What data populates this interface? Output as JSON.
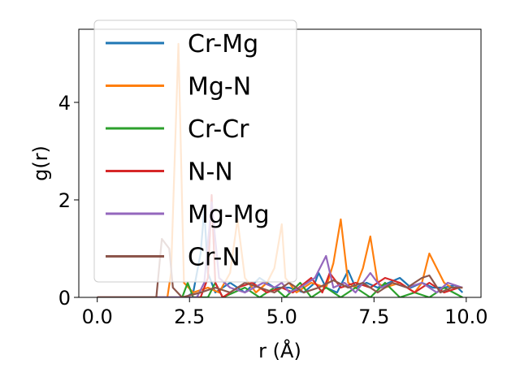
{
  "chart_data": {
    "type": "line",
    "xlabel": "r (Å)",
    "ylabel": "g(r)",
    "xlim": [
      -0.5,
      10.4
    ],
    "ylim": [
      0,
      5.5
    ],
    "xticks": [
      0.0,
      2.5,
      5.0,
      7.5,
      10.0
    ],
    "xtick_labels": [
      "0.0",
      "2.5",
      "5.0",
      "7.5",
      "10.0"
    ],
    "yticks": [
      0,
      2,
      4
    ],
    "ytick_labels": [
      "0",
      "2",
      "4"
    ],
    "grid": false,
    "legend_position": "upper-left",
    "series": [
      {
        "name": "Cr-Mg",
        "color": "#1f77b4",
        "points": [
          [
            0,
            0
          ],
          [
            1.6,
            0
          ],
          [
            2.4,
            0
          ],
          [
            2.6,
            0.1
          ],
          [
            2.8,
            0.9
          ],
          [
            2.9,
            1.8
          ],
          [
            3.0,
            0.5
          ],
          [
            3.2,
            0.1
          ],
          [
            3.6,
            0.3
          ],
          [
            4.0,
            0.1
          ],
          [
            4.4,
            0.4
          ],
          [
            4.8,
            0.2
          ],
          [
            5.2,
            0.2
          ],
          [
            5.6,
            0.1
          ],
          [
            5.9,
            0.3
          ],
          [
            6.0,
            0.5
          ],
          [
            6.2,
            0.2
          ],
          [
            6.5,
            0.1
          ],
          [
            6.8,
            0.55
          ],
          [
            7.0,
            0.2
          ],
          [
            7.3,
            0.3
          ],
          [
            7.6,
            0.2
          ],
          [
            7.9,
            0.3
          ],
          [
            8.2,
            0.4
          ],
          [
            8.5,
            0.2
          ],
          [
            8.8,
            0.3
          ],
          [
            9.1,
            0.2
          ],
          [
            9.4,
            0.2
          ],
          [
            9.7,
            0.25
          ],
          [
            9.9,
            0.1
          ]
        ]
      },
      {
        "name": "Mg-N",
        "color": "#ff7f0e",
        "points": [
          [
            0,
            0
          ],
          [
            1.9,
            0
          ],
          [
            2.0,
            0.5
          ],
          [
            2.2,
            5.2
          ],
          [
            2.35,
            0.3
          ],
          [
            2.6,
            0.1
          ],
          [
            3.0,
            0.2
          ],
          [
            3.3,
            0.1
          ],
          [
            3.6,
            0.5
          ],
          [
            3.8,
            1.6
          ],
          [
            4.0,
            0.4
          ],
          [
            4.3,
            0.1
          ],
          [
            4.6,
            0.3
          ],
          [
            4.8,
            0.6
          ],
          [
            5.0,
            1.5
          ],
          [
            5.1,
            0.4
          ],
          [
            5.4,
            0.1
          ],
          [
            5.8,
            0.3
          ],
          [
            6.2,
            0.2
          ],
          [
            6.4,
            0.7
          ],
          [
            6.6,
            1.6
          ],
          [
            6.8,
            0.3
          ],
          [
            7.0,
            0.2
          ],
          [
            7.2,
            0.6
          ],
          [
            7.4,
            1.25
          ],
          [
            7.6,
            0.3
          ],
          [
            7.8,
            0.2
          ],
          [
            8.2,
            0.3
          ],
          [
            8.6,
            0.1
          ],
          [
            8.8,
            0.3
          ],
          [
            9.0,
            0.9
          ],
          [
            9.2,
            0.6
          ],
          [
            9.4,
            0.3
          ],
          [
            9.6,
            0.2
          ],
          [
            9.9,
            0.2
          ]
        ]
      },
      {
        "name": "Cr-Cr",
        "color": "#2ca02c",
        "points": [
          [
            0,
            0
          ],
          [
            2.3,
            0
          ],
          [
            2.45,
            0.3
          ],
          [
            2.6,
            0
          ],
          [
            3.0,
            0
          ],
          [
            3.2,
            0.3
          ],
          [
            3.4,
            0
          ],
          [
            4.0,
            0.2
          ],
          [
            4.4,
            0
          ],
          [
            4.8,
            0.2
          ],
          [
            5.1,
            0
          ],
          [
            5.5,
            0.3
          ],
          [
            5.8,
            0
          ],
          [
            6.2,
            0.2
          ],
          [
            6.6,
            0
          ],
          [
            7.0,
            0.2
          ],
          [
            7.4,
            0
          ],
          [
            7.8,
            0.3
          ],
          [
            8.2,
            0
          ],
          [
            8.6,
            0.1
          ],
          [
            9.0,
            0
          ],
          [
            9.4,
            0.2
          ],
          [
            9.9,
            0
          ]
        ]
      },
      {
        "name": "N-N",
        "color": "#d62728",
        "points": [
          [
            0,
            0
          ],
          [
            2.8,
            0
          ],
          [
            3.0,
            0.4
          ],
          [
            3.1,
            2.1
          ],
          [
            3.2,
            0.3
          ],
          [
            3.4,
            0
          ],
          [
            3.8,
            0.2
          ],
          [
            4.2,
            0.3
          ],
          [
            4.6,
            0.1
          ],
          [
            5.0,
            0.2
          ],
          [
            5.3,
            0.1
          ],
          [
            5.8,
            0.4
          ],
          [
            6.1,
            0.1
          ],
          [
            6.3,
            0.5
          ],
          [
            6.6,
            0.2
          ],
          [
            7.0,
            0.3
          ],
          [
            7.4,
            0.2
          ],
          [
            7.8,
            0.4
          ],
          [
            8.2,
            0.3
          ],
          [
            8.6,
            0.1
          ],
          [
            9.0,
            0.3
          ],
          [
            9.4,
            0.1
          ],
          [
            9.8,
            0.2
          ]
        ]
      },
      {
        "name": "Mg-Mg",
        "color": "#9467bd",
        "points": [
          [
            0,
            0
          ],
          [
            2.7,
            0
          ],
          [
            2.9,
            0.3
          ],
          [
            3.1,
            1.95
          ],
          [
            3.3,
            0.4
          ],
          [
            3.6,
            0.2
          ],
          [
            4.0,
            0.1
          ],
          [
            4.5,
            0.3
          ],
          [
            4.8,
            0.2
          ],
          [
            5.0,
            0.3
          ],
          [
            5.2,
            0.1
          ],
          [
            5.5,
            0.2
          ],
          [
            5.9,
            0.4
          ],
          [
            6.2,
            0.85
          ],
          [
            6.4,
            0.2
          ],
          [
            6.7,
            0.3
          ],
          [
            7.0,
            0.1
          ],
          [
            7.4,
            0.5
          ],
          [
            7.7,
            0.2
          ],
          [
            8.0,
            0.3
          ],
          [
            8.4,
            0.2
          ],
          [
            8.8,
            0.3
          ],
          [
            9.2,
            0.1
          ],
          [
            9.5,
            0.3
          ],
          [
            9.9,
            0.2
          ]
        ]
      },
      {
        "name": "Cr-N",
        "color": "#8c564b",
        "points": [
          [
            0,
            0
          ],
          [
            1.6,
            0
          ],
          [
            1.75,
            1.2
          ],
          [
            1.95,
            1.0
          ],
          [
            2.05,
            0.2
          ],
          [
            2.3,
            0
          ],
          [
            2.8,
            0.1
          ],
          [
            3.2,
            0.2
          ],
          [
            3.6,
            0.1
          ],
          [
            4.0,
            0.3
          ],
          [
            4.4,
            0.2
          ],
          [
            4.8,
            0.1
          ],
          [
            5.2,
            0.3
          ],
          [
            5.6,
            0.1
          ],
          [
            6.0,
            0.2
          ],
          [
            6.4,
            0.35
          ],
          [
            6.8,
            0.2
          ],
          [
            7.2,
            0.3
          ],
          [
            7.6,
            0.1
          ],
          [
            8.0,
            0.3
          ],
          [
            8.4,
            0.2
          ],
          [
            8.8,
            0.4
          ],
          [
            9.0,
            0.45
          ],
          [
            9.3,
            0.1
          ],
          [
            9.6,
            0.2
          ],
          [
            9.9,
            0.2
          ]
        ]
      }
    ]
  }
}
